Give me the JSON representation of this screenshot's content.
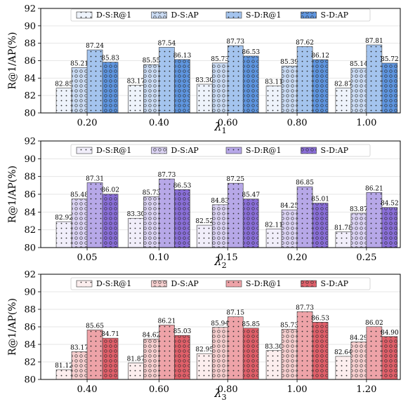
{
  "chart_data": [
    {
      "type": "bar",
      "xlabel": "λ",
      "xlabel_sub": "1",
      "ylabel": "R@1/AP(%)",
      "ylim": [
        80,
        92
      ],
      "yticks": [
        "80",
        "82",
        "84",
        "86",
        "88",
        "90",
        "92"
      ],
      "categories": [
        "0.20",
        "0.40",
        "0.60",
        "0.80",
        "1.00"
      ],
      "grid": true,
      "legend_position": "top",
      "series": [
        {
          "name": "D-S:R@1",
          "values": [
            82.85,
            83.17,
            83.3,
            83.11,
            82.87
          ],
          "labels": [
            "82.85",
            "83.17",
            "83.30",
            "83.11",
            "82.87"
          ],
          "color": "#eef3fb",
          "pattern": "dots"
        },
        {
          "name": "D-S:AP",
          "values": [
            85.21,
            85.55,
            85.73,
            85.39,
            85.14
          ],
          "labels": [
            "85.21",
            "85.55",
            "85.73",
            "85.39",
            "85.14"
          ],
          "color": "#cbdcf4",
          "pattern": "circles"
        },
        {
          "name": "S-D:R@1",
          "values": [
            87.24,
            87.54,
            87.73,
            87.62,
            87.81
          ],
          "labels": [
            "87.24",
            "87.54",
            "87.73",
            "87.62",
            "87.81"
          ],
          "color": "#a4c4ee",
          "pattern": "dots"
        },
        {
          "name": "S-D:AP",
          "values": [
            85.83,
            86.13,
            86.53,
            86.12,
            85.72
          ],
          "labels": [
            "85.83",
            "86.13",
            "86.53",
            "86.12",
            "85.72"
          ],
          "color": "#5f96e0",
          "pattern": "circles"
        }
      ]
    },
    {
      "type": "bar",
      "xlabel": "λ",
      "xlabel_sub": "2",
      "ylabel": "R@1/AP(%)",
      "ylim": [
        80,
        92
      ],
      "yticks": [
        "80",
        "82",
        "84",
        "86",
        "88",
        "90",
        "92"
      ],
      "categories": [
        "0.05",
        "0.10",
        "0.15",
        "0.20",
        "0.25"
      ],
      "grid": true,
      "legend_position": "top",
      "series": [
        {
          "name": "D-S:R@1",
          "values": [
            82.92,
            83.3,
            82.52,
            82.11,
            81.78
          ],
          "labels": [
            "82.92",
            "83.30",
            "82.52",
            "82.11",
            "81.78"
          ],
          "color": "#f1eefa",
          "pattern": "dots"
        },
        {
          "name": "D-S:AP",
          "values": [
            85.48,
            85.73,
            84.83,
            84.25,
            83.87
          ],
          "labels": [
            "85.48",
            "85.73",
            "84.83",
            "84.25",
            "83.87"
          ],
          "color": "#dbd3f3",
          "pattern": "circles"
        },
        {
          "name": "S-D:R@1",
          "values": [
            87.31,
            87.73,
            87.25,
            86.85,
            86.21
          ],
          "labels": [
            "87.31",
            "87.73",
            "87.25",
            "86.85",
            "86.21"
          ],
          "color": "#b7a8e8",
          "pattern": "dots"
        },
        {
          "name": "S-D:AP",
          "values": [
            86.02,
            86.53,
            85.47,
            85.01,
            84.52
          ],
          "labels": [
            "86.02",
            "86.53",
            "85.47",
            "85.01",
            "84.52"
          ],
          "color": "#8a6fd8",
          "pattern": "circles"
        }
      ]
    },
    {
      "type": "bar",
      "xlabel": "λ",
      "xlabel_sub": "3",
      "ylabel": "R@1/AP(%)",
      "ylim": [
        80,
        92
      ],
      "yticks": [
        "80",
        "82",
        "84",
        "86",
        "88",
        "90",
        "92"
      ],
      "categories": [
        "0.40",
        "0.60",
        "0.80",
        "1.00",
        "1.20"
      ],
      "grid": true,
      "legend_position": "top",
      "series": [
        {
          "name": "D-S:R@1",
          "values": [
            81.12,
            81.87,
            82.95,
            83.3,
            82.64
          ],
          "labels": [
            "81.12",
            "81.87",
            "82.95",
            "83.30",
            "82.64"
          ],
          "color": "#fceeee",
          "pattern": "dots"
        },
        {
          "name": "D-S:AP",
          "values": [
            83.17,
            84.62,
            85.94,
            85.73,
            84.29
          ],
          "labels": [
            "83.17",
            "84.62",
            "85.94",
            "85.73",
            "84.29"
          ],
          "color": "#f6cfcf",
          "pattern": "circles"
        },
        {
          "name": "S-D:R@1",
          "values": [
            85.65,
            86.21,
            87.15,
            87.73,
            86.02
          ],
          "labels": [
            "85.65",
            "86.21",
            "87.15",
            "87.73",
            "86.02"
          ],
          "color": "#eea3a8",
          "pattern": "dots"
        },
        {
          "name": "S-D:AP",
          "values": [
            84.71,
            85.03,
            85.85,
            86.53,
            84.9
          ],
          "labels": [
            "84.71",
            "85.03",
            "85.85",
            "86.53",
            "84.90"
          ],
          "color": "#e0606a",
          "pattern": "circles"
        }
      ]
    }
  ]
}
